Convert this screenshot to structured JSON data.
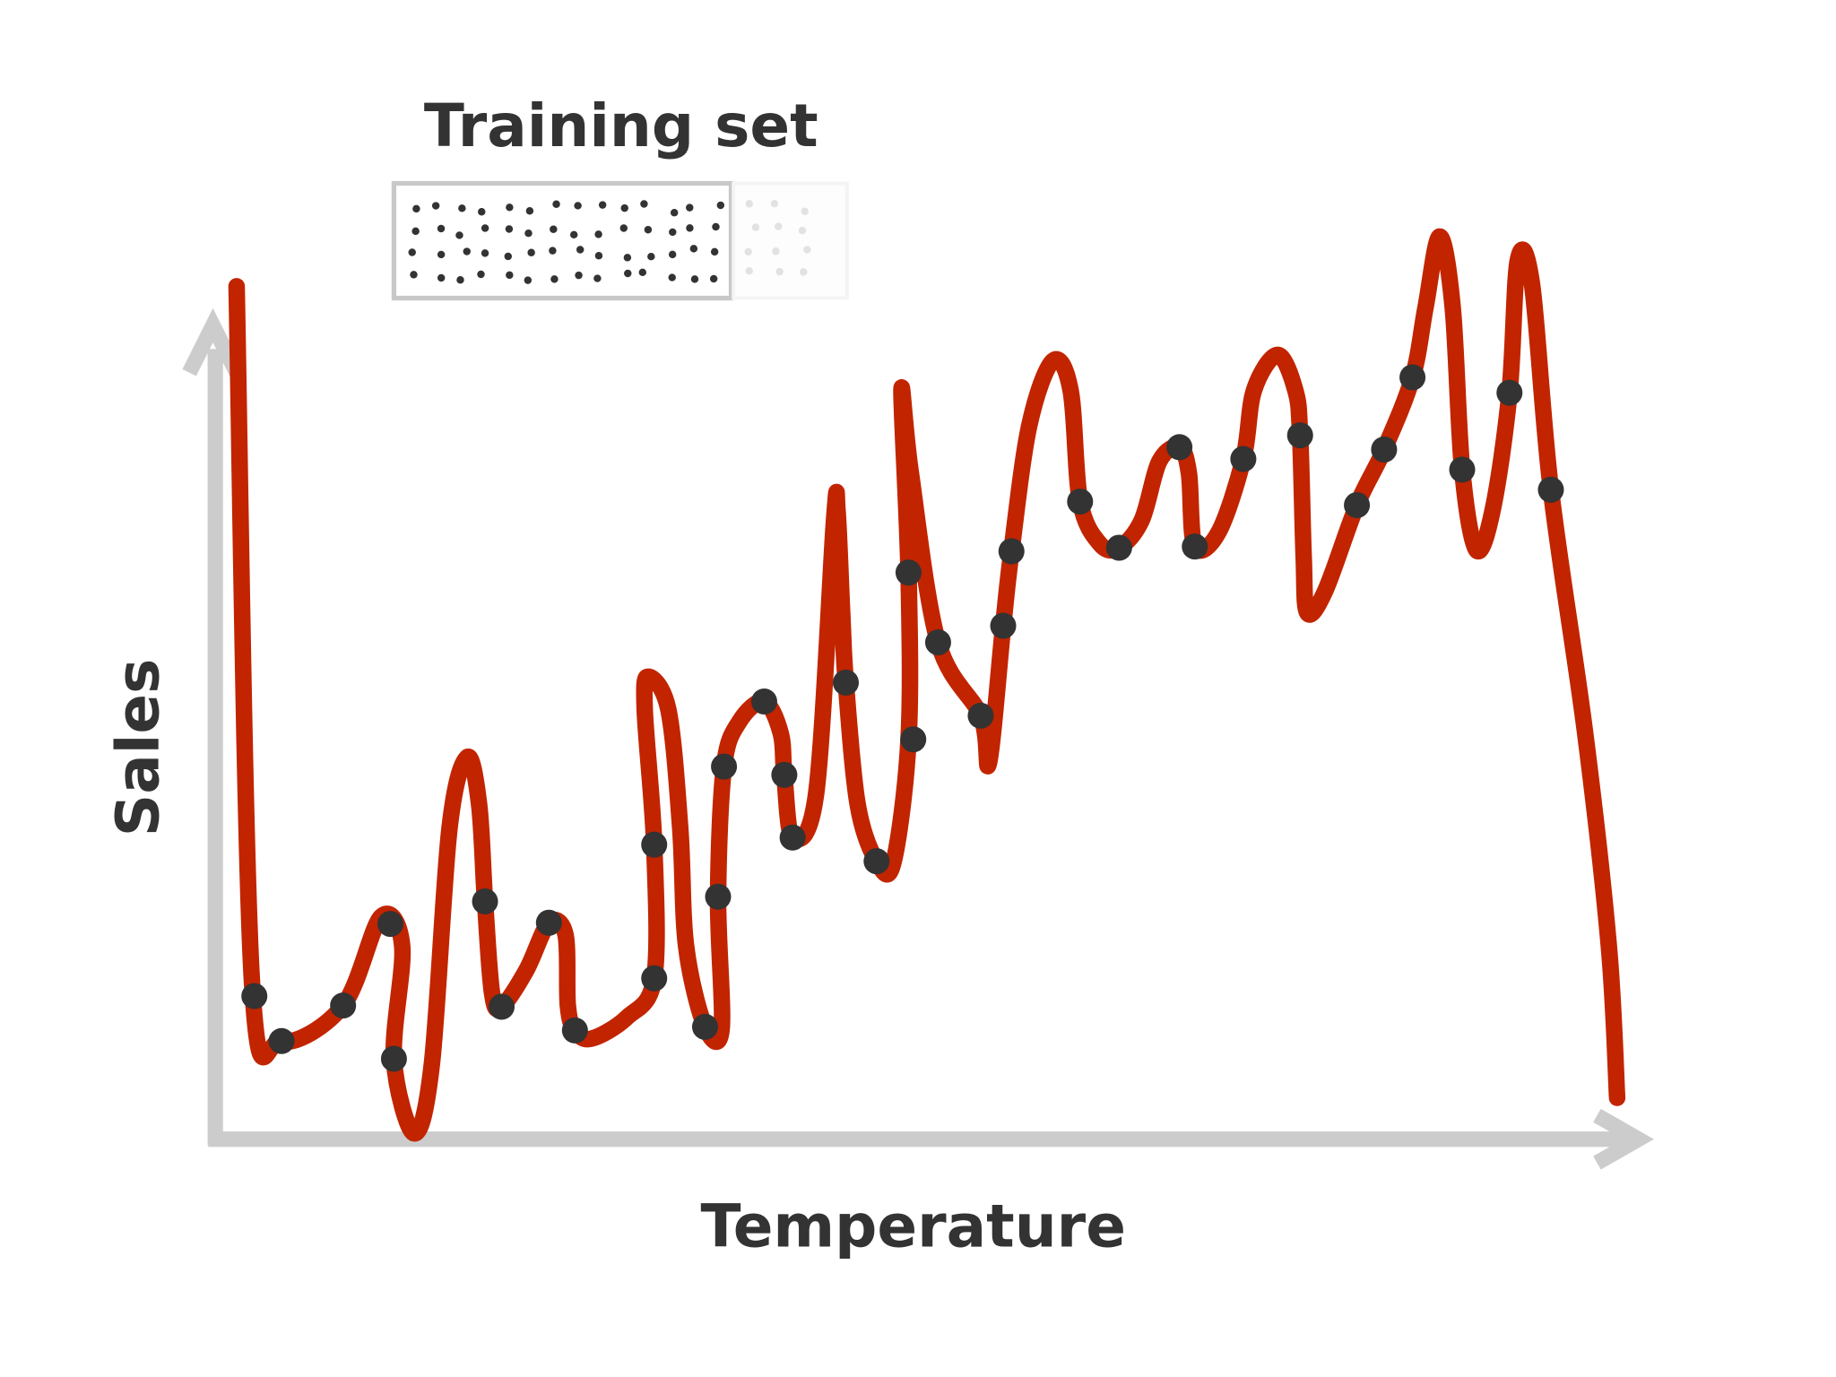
{
  "training_set": {
    "title": "Training set"
  },
  "axes": {
    "x_label": "Temperature",
    "y_label": "Sales"
  }
}
